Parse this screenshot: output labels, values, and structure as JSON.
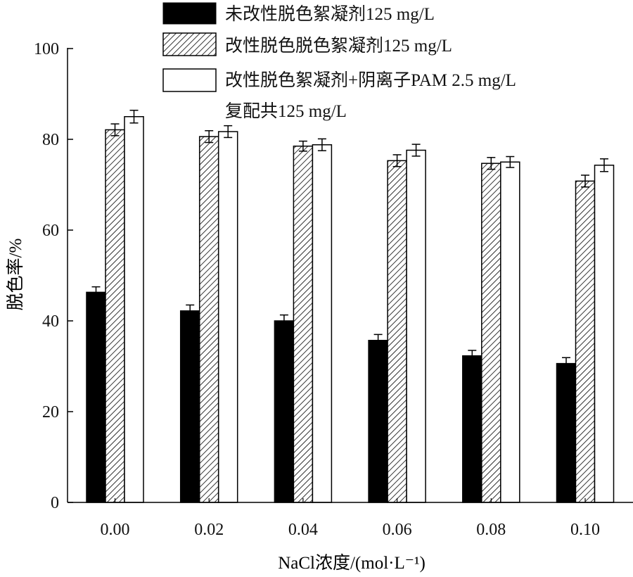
{
  "chart_data": {
    "type": "bar",
    "title": "",
    "xlabel": "NaCl浓度/(mol·L⁻¹)",
    "ylabel": "脱色率/%",
    "ylim": [
      0,
      100
    ],
    "yticks": [
      "0",
      "20",
      "40",
      "60",
      "80",
      "100"
    ],
    "categories": [
      "0.00",
      "0.02",
      "0.04",
      "0.06",
      "0.08",
      "0.10"
    ],
    "legend_position": "top",
    "series": [
      {
        "name": "未改性脱色絮凝剂125 mg/L",
        "style": "solid-black",
        "values": [
          46.3,
          42.2,
          40.0,
          35.7,
          32.3,
          30.6
        ],
        "errors": [
          1.2,
          1.3,
          1.3,
          1.3,
          1.2,
          1.3
        ]
      },
      {
        "name": "改性脱色脱色絮凝剂125 mg/L",
        "style": "hatched",
        "values": [
          82.1,
          80.6,
          78.5,
          75.3,
          74.7,
          70.8
        ],
        "errors": [
          1.3,
          1.3,
          1.1,
          1.3,
          1.3,
          1.3
        ]
      },
      {
        "name": "改性脱色絮凝剂+阴离子PAM 2.5 mg/L",
        "name_line2": "复配共125 mg/L",
        "style": "white",
        "values": [
          85.0,
          81.7,
          78.8,
          77.6,
          75.0,
          74.3
        ],
        "errors": [
          1.4,
          1.3,
          1.3,
          1.3,
          1.2,
          1.4
        ]
      }
    ]
  }
}
